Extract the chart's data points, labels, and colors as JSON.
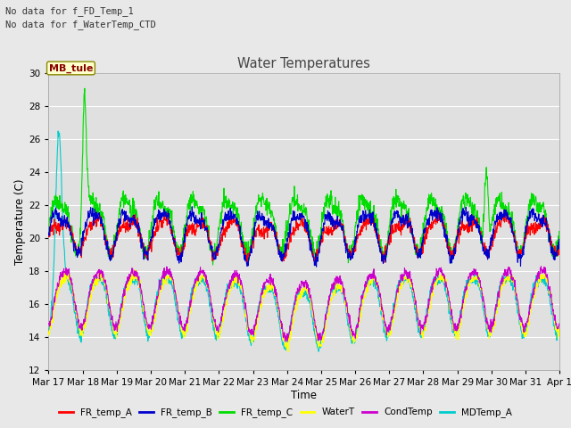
{
  "title": "Water Temperatures",
  "xlabel": "Time",
  "ylabel": "Temperature (C)",
  "ylim": [
    12,
    30
  ],
  "yticks": [
    12,
    14,
    16,
    18,
    20,
    22,
    24,
    26,
    28,
    30
  ],
  "fig_bg": "#e8e8e8",
  "plot_bg": "#e0e0e0",
  "annotations": [
    "No data for f_FD_Temp_1",
    "No data for f_WaterTemp_CTD"
  ],
  "mb_tule_label": "MB_tule",
  "legend_entries": [
    "FR_temp_A",
    "FR_temp_B",
    "FR_temp_C",
    "WaterT",
    "CondTemp",
    "MDTemp_A"
  ],
  "legend_colors": [
    "#ff0000",
    "#0000cc",
    "#00dd00",
    "#ffff00",
    "#cc00cc",
    "#00cccc"
  ],
  "x_tick_labels": [
    "Mar 17",
    "Mar 18",
    "Mar 19",
    "Mar 20",
    "Mar 21",
    "Mar 22",
    "Mar 23",
    "Mar 24",
    "Mar 25",
    "Mar 26",
    "Mar 27",
    "Mar 28",
    "Mar 29",
    "Mar 30",
    "Mar 31",
    "Apr 1"
  ]
}
